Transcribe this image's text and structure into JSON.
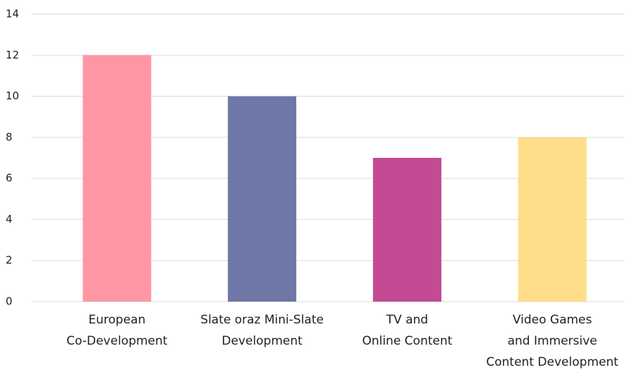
{
  "chart_data": {
    "type": "bar",
    "categories": [
      [
        "European",
        "Co-Development"
      ],
      [
        "Slate oraz Mini-Slate",
        "Development"
      ],
      [
        "TV and",
        "Online Content"
      ],
      [
        "Video Games",
        "and Immersive",
        "Content Development"
      ]
    ],
    "values": [
      12,
      10,
      7,
      8
    ],
    "colors": [
      "#ff96a3",
      "#6f77a8",
      "#c44a93",
      "#ffdd8a"
    ],
    "ylim": [
      0,
      14
    ],
    "yticks": [
      0,
      2,
      4,
      6,
      8,
      10,
      12,
      14
    ],
    "grid": true
  }
}
